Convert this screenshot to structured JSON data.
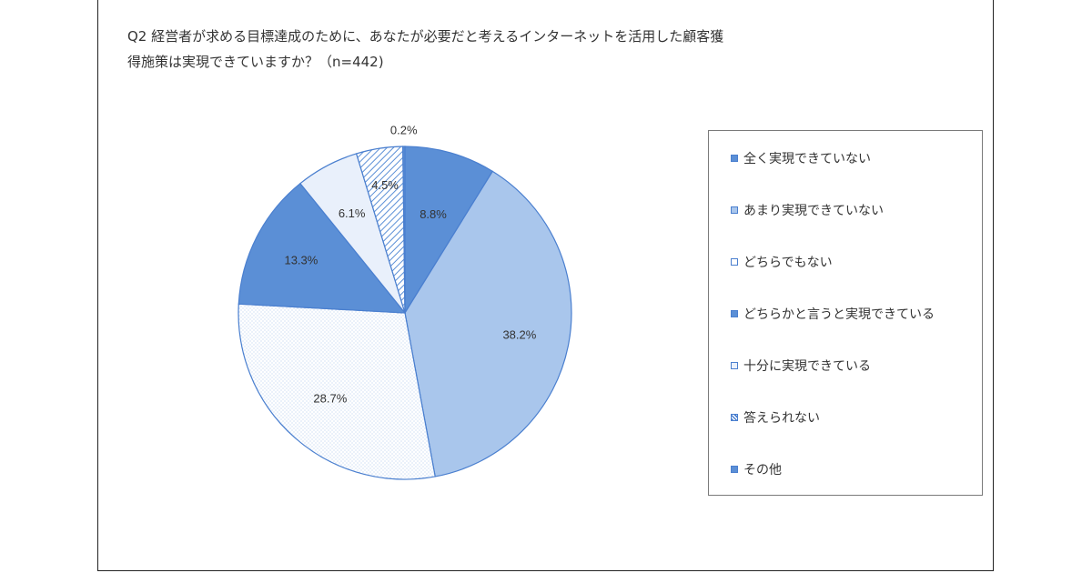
{
  "chart_data": {
    "type": "pie",
    "title_lines": [
      "Q2 経営者が求める目標達成のために、あなたが必要だと考えるインターネットを活用した顧客獲",
      "得施策は実現できていますか？（n=442)"
    ],
    "series": [
      {
        "name": "全く実現できていない",
        "value": 8.8,
        "label": "8.8%",
        "fill": "#5b8fd6",
        "pattern": "solid"
      },
      {
        "name": "あまり実現できていない",
        "value": 38.2,
        "label": "38.2%",
        "fill": "#a9c6ec",
        "pattern": "solid"
      },
      {
        "name": "どちらでもない",
        "value": 28.7,
        "label": "28.7%",
        "fill": "#ffffff",
        "pattern": "dots"
      },
      {
        "name": "どちらかと言うと実現できている",
        "value": 13.3,
        "label": "13.3%",
        "fill": "#5b8fd6",
        "pattern": "solid"
      },
      {
        "name": "十分に実現できている",
        "value": 6.1,
        "label": "6.1%",
        "fill": "#e9f0fb",
        "pattern": "solid"
      },
      {
        "name": "答えられない",
        "value": 4.5,
        "label": "4.5%",
        "fill": "#ffffff",
        "pattern": "hatch"
      },
      {
        "name": "その他",
        "value": 0.2,
        "label": "0.2%",
        "fill": "#5b8fd6",
        "pattern": "solid"
      }
    ],
    "legend_position": "right",
    "slice_border_color": "#4a7fcf"
  }
}
